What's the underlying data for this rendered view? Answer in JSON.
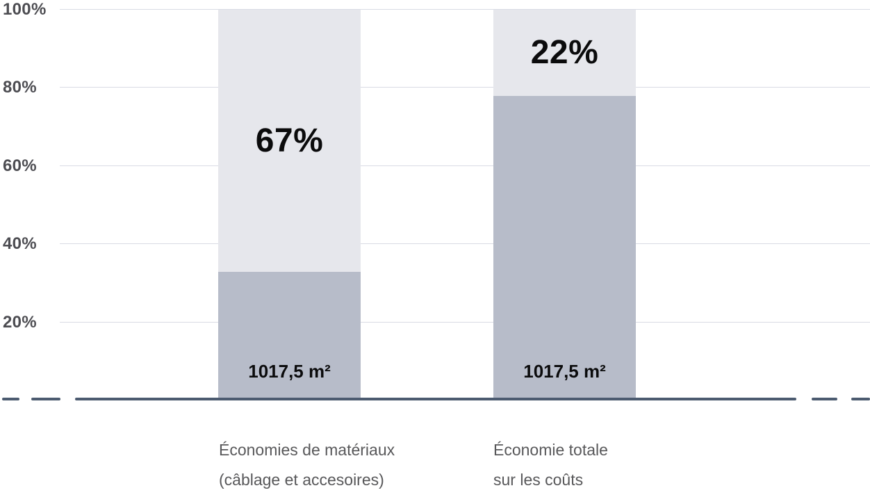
{
  "chart_data": {
    "type": "bar",
    "variant": "stacked",
    "title": "",
    "xlabel": "",
    "ylabel": "",
    "ylim": [
      0,
      100
    ],
    "grid": true,
    "legend": "none",
    "yticks": [
      100,
      80,
      60,
      40,
      20
    ],
    "ytick_labels": [
      "100%",
      "80%",
      "60%",
      "40%",
      "20%"
    ],
    "categories": [
      {
        "line1": "Économies de matériaux",
        "line2": "(câblage et accesoires)"
      },
      {
        "line1": "Économie totale",
        "line2": "sur les coûts"
      }
    ],
    "series": [
      {
        "name": "base-segment",
        "values": [
          33,
          78
        ],
        "labels": [
          "1017,5 m²",
          "1017,5 m²"
        ],
        "color": "#b7bcc9"
      },
      {
        "name": "top-segment",
        "values": [
          67,
          22
        ],
        "labels": [
          "67%",
          "22%"
        ],
        "color": "#e6e7ec"
      }
    ],
    "colors": {
      "gridline": "#d9dbe4",
      "baseline": "#4c5b70",
      "tick_text": "#4d4d52",
      "category_text": "#58585a",
      "value_text": "#0b0b0c"
    }
  }
}
